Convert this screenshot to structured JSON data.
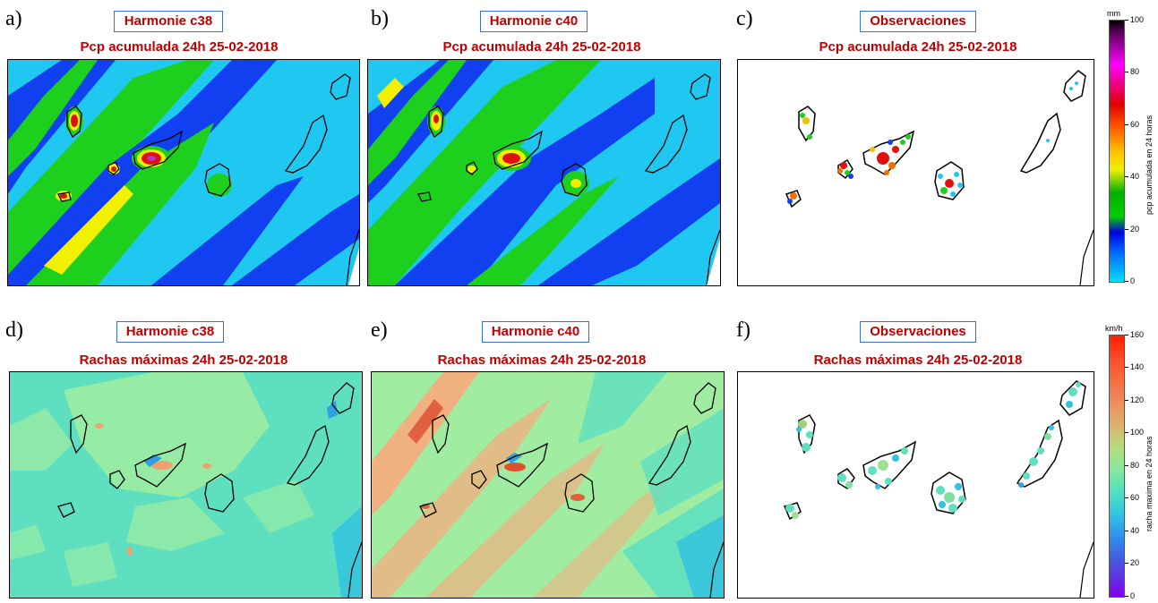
{
  "panels": {
    "a": {
      "letter": "a)",
      "title": "Harmonie c38",
      "subtitle": "Pcp acumulada 24h 25-02-2018"
    },
    "b": {
      "letter": "b)",
      "title": "Harmonie c40",
      "subtitle": "Pcp acumulada 24h 25-02-2018"
    },
    "c": {
      "letter": "c)",
      "title": "Observaciones",
      "subtitle": "Pcp acumulada 24h 25-02-2018"
    },
    "d": {
      "letter": "d)",
      "title": "Harmonie c38",
      "subtitle": "Rachas máximas 24h 25-02-2018"
    },
    "e": {
      "letter": "e)",
      "title": "Harmonie c40",
      "subtitle": "Rachas máximas 24h 25-02-2018"
    },
    "f": {
      "letter": "f)",
      "title": "Observaciones",
      "subtitle": "Rachas máximas 24h 25-02-2018"
    }
  },
  "colorbars": {
    "pcp": {
      "unit": "mm",
      "label": "pcp acumulada en 24 horas",
      "ticks": [
        "100",
        "80",
        "60",
        "40",
        "20",
        "0"
      ],
      "range": [
        0,
        100
      ]
    },
    "wind": {
      "unit": "km/h",
      "label": "racha maxima en 24 horas",
      "ticks": [
        "160",
        "140",
        "120",
        "100",
        "80",
        "60",
        "40",
        "20",
        "0"
      ],
      "range": [
        0,
        160
      ]
    }
  },
  "colors": {
    "title_red": "#c00000",
    "title_box_border": "#3a6fd8",
    "pcp_light_blue": "#1fc8f0",
    "pcp_blue": "#1040f0",
    "pcp_green": "#1ed01e",
    "pcp_yellow": "#f0f000",
    "pcp_red": "#e01010",
    "wind_base": "#5ee0c0",
    "wind_light": "#a0eca0",
    "wind_orange": "#f0a070"
  }
}
